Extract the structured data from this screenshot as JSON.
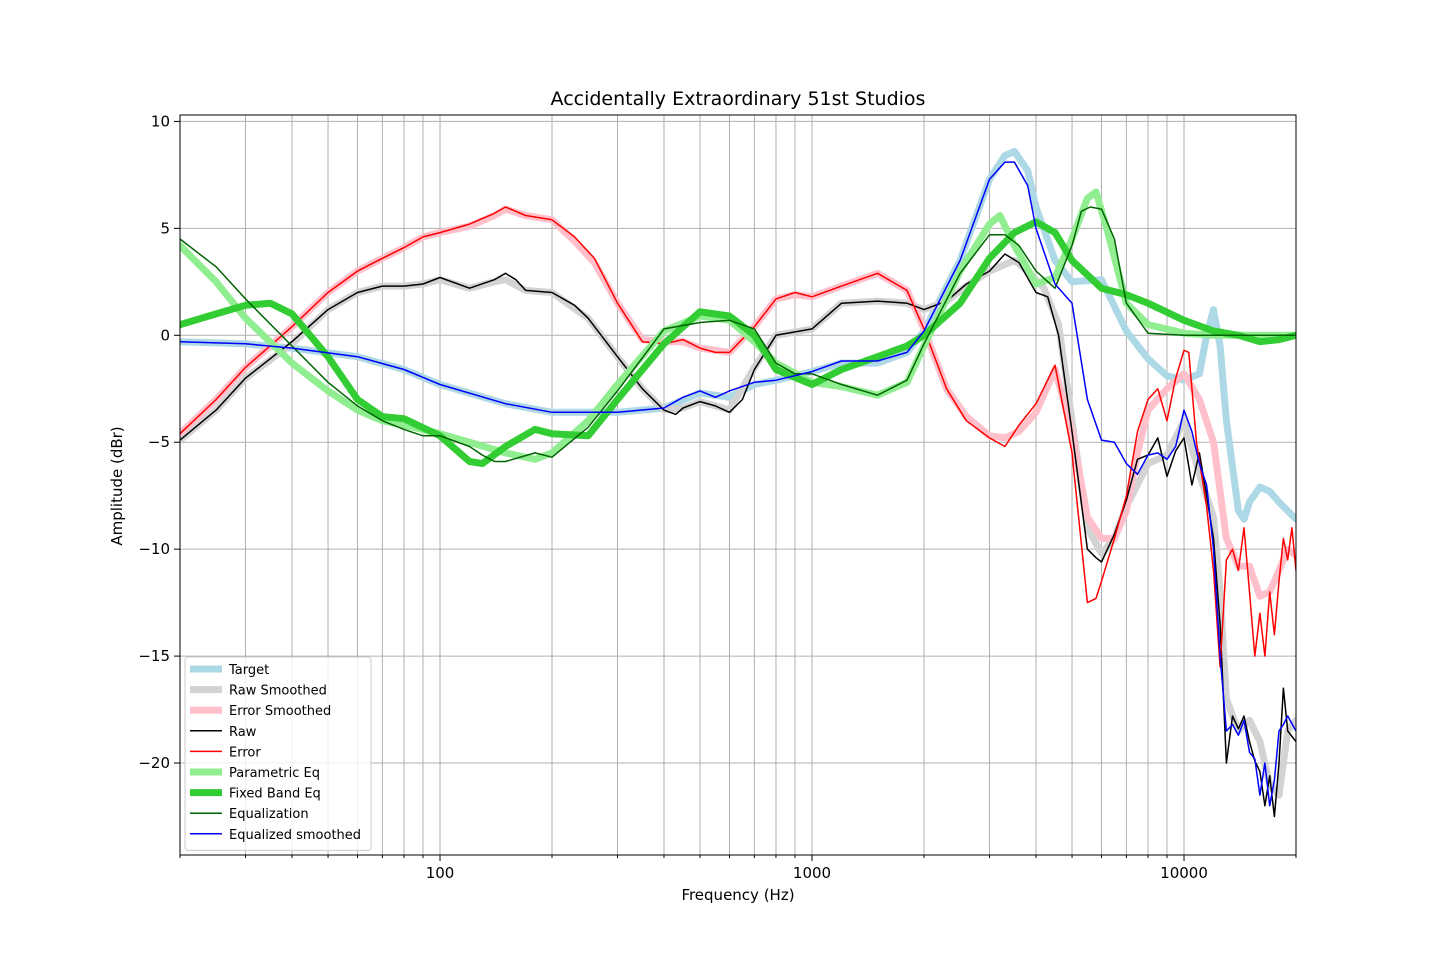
{
  "chart_data": {
    "type": "line",
    "title": "Accidentally Extraordinary 51st Studios",
    "xlabel": "Frequency (Hz)",
    "ylabel": "Amplitude (dBr)",
    "x_scale": "log",
    "xlim": [
      20,
      20000
    ],
    "ylim": [
      -24.3,
      10.3
    ],
    "x_ticks": [
      100,
      1000,
      10000
    ],
    "x_tick_labels": [
      "100",
      "1000",
      "10000"
    ],
    "y_ticks": [
      -20,
      -15,
      -10,
      -5,
      0,
      5,
      10
    ],
    "y_tick_labels": [
      "−20",
      "−15",
      "−10",
      "−5",
      "0",
      "5",
      "10"
    ],
    "grid": true,
    "legend_position": "lower-left",
    "series": [
      {
        "name": "Target",
        "color": "#add8e6",
        "style": "thick",
        "x": [
          20,
          30,
          40,
          60,
          80,
          100,
          150,
          200,
          300,
          400,
          500,
          600,
          700,
          800,
          1000,
          1200,
          1500,
          1800,
          2000,
          2500,
          3000,
          3300,
          3500,
          3800,
          4000,
          4500,
          5000,
          6000,
          7000,
          8000,
          9000,
          10000,
          11000,
          11500,
          12000,
          12500,
          13000,
          14000,
          14500,
          15000,
          16000,
          17000,
          18000,
          20000
        ],
        "y": [
          -0.3,
          -0.4,
          -0.6,
          -1.0,
          -1.6,
          -2.3,
          -3.2,
          -3.6,
          -3.6,
          -3.4,
          -2.7,
          -2.9,
          -2.3,
          -2.1,
          -1.7,
          -1.3,
          -1.3,
          -0.8,
          0.2,
          3.5,
          7.3,
          8.4,
          8.6,
          7.7,
          6.0,
          3.5,
          2.5,
          2.6,
          0.2,
          -1.1,
          -1.9,
          -2.1,
          -1.8,
          0.0,
          1.2,
          -0.5,
          -4.0,
          -8.2,
          -8.6,
          -7.8,
          -7.1,
          -7.3,
          -7.8,
          -8.6
        ]
      },
      {
        "name": "Raw Smoothed",
        "color": "#d3d3d3",
        "style": "thick",
        "x": [
          20,
          25,
          30,
          40,
          50,
          60,
          70,
          80,
          90,
          100,
          120,
          140,
          150,
          170,
          200,
          250,
          300,
          350,
          400,
          450,
          500,
          550,
          600,
          700,
          800,
          1000,
          1200,
          1500,
          1800,
          2000,
          2300,
          2600,
          3000,
          3500,
          3800,
          4200,
          4600,
          5000,
          5500,
          6000,
          6500,
          7000,
          8000,
          9000,
          10000,
          11000,
          12000,
          12500,
          13000,
          14000,
          15000,
          16000,
          17000,
          18000,
          19000,
          20000
        ],
        "y": [
          -4.9,
          -3.5,
          -2.0,
          -0.4,
          1.2,
          2.0,
          2.3,
          2.3,
          2.4,
          2.6,
          2.2,
          2.5,
          2.6,
          2.1,
          2.0,
          0.8,
          -1.0,
          -2.5,
          -3.5,
          -3.4,
          -3.1,
          -3.3,
          -3.5,
          -1.5,
          0.0,
          0.3,
          1.5,
          1.6,
          1.5,
          1.2,
          1.6,
          2.3,
          3.0,
          3.5,
          3.0,
          2.2,
          0.5,
          -4.0,
          -9.0,
          -10.2,
          -9.5,
          -8.0,
          -6.0,
          -5.6,
          -4.0,
          -6.5,
          -8.5,
          -12.0,
          -17.0,
          -18.5,
          -18.0,
          -19.0,
          -21.0,
          -21.5,
          -18.5,
          -18.0
        ]
      },
      {
        "name": "Error Smoothed",
        "color": "#ffc0cb",
        "style": "thick",
        "x": [
          20,
          25,
          30,
          40,
          50,
          60,
          70,
          80,
          90,
          100,
          120,
          140,
          150,
          170,
          200,
          230,
          260,
          300,
          350,
          400,
          450,
          500,
          550,
          600,
          700,
          800,
          900,
          1000,
          1200,
          1500,
          1800,
          2000,
          2300,
          2600,
          3000,
          3300,
          3600,
          4000,
          4500,
          5000,
          5500,
          6000,
          6500,
          7000,
          7500,
          8000,
          9000,
          10000,
          11000,
          12000,
          13000,
          14000,
          15000,
          16000,
          17000,
          18000,
          19000,
          20000
        ],
        "y": [
          -4.6,
          -3.0,
          -1.5,
          0.4,
          2.0,
          3.0,
          3.6,
          4.1,
          4.6,
          4.8,
          5.1,
          5.6,
          5.9,
          5.6,
          5.4,
          4.4,
          3.4,
          1.5,
          -0.2,
          -0.3,
          -0.3,
          -0.6,
          -0.7,
          -0.8,
          0.4,
          1.7,
          1.9,
          1.8,
          2.3,
          2.9,
          2.1,
          0.3,
          -2.5,
          -3.8,
          -4.7,
          -4.8,
          -4.5,
          -3.6,
          -1.6,
          -4.5,
          -8.5,
          -9.5,
          -9.5,
          -8.2,
          -5.5,
          -3.5,
          -2.5,
          -1.8,
          -3.0,
          -5.0,
          -9.5,
          -10.8,
          -10.8,
          -12.2,
          -12.0,
          -11.0,
          -10.0,
          -10.3
        ]
      },
      {
        "name": "Raw",
        "color": "#000000",
        "style": "thin",
        "x": [
          20,
          25,
          30,
          40,
          50,
          60,
          70,
          80,
          90,
          100,
          120,
          140,
          150,
          160,
          170,
          200,
          230,
          250,
          300,
          350,
          400,
          430,
          450,
          500,
          550,
          600,
          650,
          700,
          800,
          1000,
          1200,
          1500,
          1800,
          2000,
          2300,
          2600,
          3000,
          3300,
          3600,
          4000,
          4300,
          4600,
          5000,
          5500,
          5800,
          6000,
          6500,
          7000,
          7500,
          8000,
          8500,
          9000,
          9500,
          10000,
          10500,
          11000,
          11500,
          12000,
          12500,
          13000,
          13500,
          14000,
          14500,
          15000,
          15500,
          16000,
          16500,
          17000,
          17500,
          18000,
          18500,
          19000,
          20000
        ],
        "y": [
          -4.9,
          -3.5,
          -2.0,
          -0.3,
          1.2,
          2.0,
          2.3,
          2.3,
          2.4,
          2.7,
          2.2,
          2.6,
          2.9,
          2.6,
          2.1,
          2.0,
          1.4,
          0.8,
          -1.0,
          -2.5,
          -3.5,
          -3.7,
          -3.4,
          -3.1,
          -3.3,
          -3.6,
          -3.0,
          -1.6,
          0.0,
          0.3,
          1.5,
          1.6,
          1.5,
          1.2,
          1.6,
          2.4,
          3.0,
          3.8,
          3.4,
          2.0,
          1.8,
          0.0,
          -4.5,
          -10.0,
          -10.4,
          -10.6,
          -9.3,
          -7.7,
          -5.8,
          -5.6,
          -4.8,
          -6.6,
          -5.4,
          -4.8,
          -7.0,
          -5.5,
          -7.5,
          -9.5,
          -13.5,
          -20.0,
          -17.8,
          -18.4,
          -17.8,
          -19.0,
          -19.9,
          -20.4,
          -22.0,
          -20.6,
          -22.5,
          -20.0,
          -16.5,
          -18.5,
          -19.0
        ]
      },
      {
        "name": "Error",
        "color": "#ff0000",
        "style": "thin",
        "x": [
          20,
          25,
          30,
          40,
          50,
          60,
          70,
          80,
          90,
          100,
          120,
          140,
          150,
          170,
          200,
          230,
          260,
          300,
          350,
          400,
          450,
          500,
          550,
          600,
          700,
          800,
          900,
          1000,
          1200,
          1500,
          1800,
          2000,
          2300,
          2600,
          3000,
          3300,
          3600,
          4000,
          4500,
          5000,
          5500,
          5800,
          6000,
          6500,
          7000,
          7500,
          8000,
          8500,
          9000,
          9500,
          10000,
          10300,
          10800,
          11500,
          12000,
          12500,
          13000,
          13500,
          14000,
          14500,
          15000,
          15500,
          16000,
          16500,
          17000,
          17500,
          18000,
          18500,
          19000,
          19500,
          20000
        ],
        "y": [
          -4.6,
          -3.0,
          -1.5,
          0.4,
          2.0,
          3.0,
          3.6,
          4.1,
          4.6,
          4.8,
          5.2,
          5.7,
          6.0,
          5.6,
          5.4,
          4.6,
          3.6,
          1.5,
          -0.3,
          -0.4,
          -0.2,
          -0.6,
          -0.8,
          -0.8,
          0.4,
          1.7,
          2.0,
          1.8,
          2.3,
          2.9,
          2.1,
          0.3,
          -2.5,
          -4.0,
          -4.8,
          -5.2,
          -4.2,
          -3.2,
          -1.4,
          -5.5,
          -12.5,
          -12.3,
          -11.5,
          -9.5,
          -7.5,
          -4.5,
          -3.0,
          -2.5,
          -4.0,
          -2.0,
          -0.7,
          -0.8,
          -5.0,
          -8.0,
          -11.0,
          -15.5,
          -10.5,
          -10.0,
          -11.0,
          -9.0,
          -12.0,
          -15.0,
          -13.0,
          -15.0,
          -12.0,
          -14.0,
          -11.5,
          -9.5,
          -10.5,
          -9.0,
          -11.0
        ]
      },
      {
        "name": "Parametric Eq",
        "color": "#90ee90",
        "style": "thick",
        "x": [
          20,
          25,
          30,
          40,
          50,
          60,
          70,
          80,
          100,
          120,
          150,
          180,
          200,
          250,
          300,
          400,
          500,
          600,
          700,
          800,
          1000,
          1200,
          1500,
          1800,
          2000,
          2500,
          3000,
          3200,
          3500,
          4000,
          4500,
          5000,
          5500,
          5800,
          6200,
          7000,
          8000,
          10000,
          12000,
          15000,
          20000
        ],
        "y": [
          4.2,
          2.5,
          0.8,
          -1.3,
          -2.6,
          -3.5,
          -4.0,
          -4.2,
          -4.6,
          -5.0,
          -5.5,
          -5.8,
          -5.5,
          -4.0,
          -2.3,
          0.2,
          0.9,
          0.7,
          -0.3,
          -1.3,
          -2.2,
          -2.4,
          -2.8,
          -2.2,
          -0.5,
          3.0,
          5.2,
          5.6,
          4.2,
          2.4,
          2.7,
          4.5,
          6.4,
          6.7,
          5.0,
          1.5,
          0.5,
          0.1,
          0.0,
          0.0,
          0.0
        ]
      },
      {
        "name": "Fixed Band Eq",
        "color": "#32cd32",
        "style": "thick",
        "x": [
          20,
          25,
          30,
          35,
          40,
          50,
          60,
          70,
          80,
          100,
          120,
          130,
          150,
          180,
          200,
          250,
          300,
          400,
          500,
          600,
          700,
          800,
          1000,
          1200,
          1500,
          1800,
          2000,
          2500,
          3000,
          3500,
          4000,
          4500,
          5000,
          6000,
          7000,
          8000,
          10000,
          12000,
          14000,
          16000,
          18000,
          20000
        ],
        "y": [
          0.5,
          1.0,
          1.4,
          1.5,
          1.0,
          -1.0,
          -3.0,
          -3.8,
          -3.9,
          -4.7,
          -5.9,
          -6.0,
          -5.2,
          -4.4,
          -4.6,
          -4.7,
          -3.0,
          -0.4,
          1.1,
          0.9,
          0.0,
          -1.6,
          -2.3,
          -1.6,
          -1.0,
          -0.5,
          0.0,
          1.5,
          3.6,
          4.8,
          5.3,
          4.8,
          3.5,
          2.2,
          1.9,
          1.5,
          0.7,
          0.2,
          0.0,
          -0.3,
          -0.2,
          0.0
        ]
      },
      {
        "name": "Equalization",
        "color": "#006400",
        "style": "thin",
        "x": [
          20,
          25,
          30,
          40,
          50,
          60,
          70,
          80,
          90,
          100,
          120,
          130,
          140,
          150,
          180,
          200,
          250,
          300,
          400,
          500,
          600,
          700,
          800,
          900,
          1000,
          1200,
          1500,
          1800,
          2000,
          2500,
          3000,
          3300,
          3600,
          4000,
          4500,
          5000,
          5300,
          5600,
          6000,
          6500,
          7000,
          8000,
          10000,
          12000,
          15000,
          20000
        ],
        "y": [
          4.5,
          3.2,
          1.7,
          -0.5,
          -2.2,
          -3.3,
          -4.0,
          -4.4,
          -4.7,
          -4.7,
          -5.2,
          -5.6,
          -5.9,
          -5.9,
          -5.5,
          -5.7,
          -4.3,
          -2.6,
          0.3,
          0.6,
          0.7,
          0.3,
          -1.3,
          -1.8,
          -1.8,
          -2.3,
          -2.8,
          -2.1,
          -0.4,
          2.9,
          4.7,
          4.7,
          4.2,
          3.0,
          2.2,
          4.2,
          5.8,
          6.0,
          5.9,
          4.5,
          1.5,
          0.1,
          0.0,
          0.0,
          0.0,
          0.0
        ]
      },
      {
        "name": "Equalized smoothed",
        "color": "#0000ff",
        "style": "thin",
        "x": [
          20,
          30,
          40,
          60,
          80,
          100,
          150,
          200,
          300,
          400,
          450,
          500,
          550,
          600,
          700,
          800,
          1000,
          1200,
          1500,
          1800,
          2000,
          2500,
          3000,
          3300,
          3500,
          3800,
          4000,
          4500,
          5000,
          5500,
          6000,
          6500,
          7000,
          7500,
          8000,
          8500,
          9000,
          9500,
          10000,
          10500,
          11000,
          11500,
          12000,
          12500,
          13000,
          13500,
          14000,
          14500,
          15000,
          15500,
          16000,
          16500,
          17000,
          17500,
          18000,
          18500,
          19000,
          20000
        ],
        "y": [
          -0.3,
          -0.4,
          -0.6,
          -1.0,
          -1.6,
          -2.3,
          -3.2,
          -3.6,
          -3.6,
          -3.4,
          -2.9,
          -2.6,
          -2.9,
          -2.6,
          -2.2,
          -2.1,
          -1.7,
          -1.2,
          -1.2,
          -0.8,
          0.2,
          3.5,
          7.3,
          8.1,
          8.1,
          7.0,
          5.0,
          2.4,
          1.5,
          -3.0,
          -4.9,
          -5.0,
          -6.0,
          -6.5,
          -5.6,
          -5.5,
          -5.8,
          -5.2,
          -3.5,
          -4.5,
          -6.0,
          -7.0,
          -10.0,
          -15.0,
          -18.5,
          -18.2,
          -18.7,
          -18.0,
          -19.5,
          -19.8,
          -21.5,
          -20.0,
          -22.0,
          -20.8,
          -18.5,
          -18.2,
          -17.8,
          -18.5
        ]
      }
    ]
  }
}
